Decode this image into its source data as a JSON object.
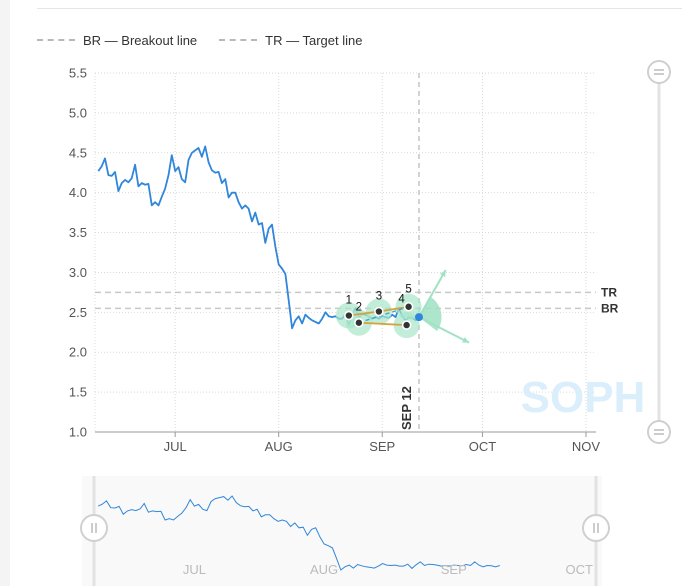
{
  "legend": {
    "br_label": "BR — Breakout line",
    "tr_label": "TR — Target line"
  },
  "watermark": "SOPH",
  "colors": {
    "price": "#2f86da",
    "reference_lines": "#c8c8c8",
    "pattern_fill": "#a8e6c9",
    "pattern_line_a": "#d6a23c",
    "pattern_line_b": "#3fa8c9",
    "projection": "#9fe2c4",
    "endpoint": "#2f86da",
    "watermark": "#dbeefc"
  },
  "chart_data": {
    "type": "line",
    "title": "",
    "xlabel": "",
    "ylabel": "",
    "ylim": [
      1.0,
      5.5
    ],
    "xlim": [
      "2025-06-07",
      "2025-11-04"
    ],
    "yticks": [
      "1.0",
      "1.5",
      "2.0",
      "2.5",
      "3.0",
      "3.5",
      "4.0",
      "4.5",
      "5.0",
      "5.5"
    ],
    "xticks": [
      {
        "label": "JUL",
        "date": "2025-07-01"
      },
      {
        "label": "AUG",
        "date": "2025-08-01"
      },
      {
        "label": "SEP",
        "date": "2025-09-01"
      },
      {
        "label": "OCT",
        "date": "2025-10-01"
      },
      {
        "label": "NOV",
        "date": "2025-11-01"
      }
    ],
    "grid": true,
    "legend_position": "top-left",
    "series": [
      {
        "values": [
          [
            "2025-06-08",
            4.27
          ],
          [
            "2025-06-09",
            4.33
          ],
          [
            "2025-06-10",
            4.43
          ],
          [
            "2025-06-11",
            4.22
          ],
          [
            "2025-06-12",
            4.21
          ],
          [
            "2025-06-13",
            4.26
          ],
          [
            "2025-06-14",
            4.02
          ],
          [
            "2025-06-15",
            4.12
          ],
          [
            "2025-06-16",
            4.16
          ],
          [
            "2025-06-17",
            4.13
          ],
          [
            "2025-06-18",
            4.18
          ],
          [
            "2025-06-19",
            4.35
          ],
          [
            "2025-06-20",
            4.08
          ],
          [
            "2025-06-21",
            4.12
          ],
          [
            "2025-06-22",
            4.1
          ],
          [
            "2025-06-23",
            4.11
          ],
          [
            "2025-06-24",
            3.84
          ],
          [
            "2025-06-25",
            3.88
          ],
          [
            "2025-06-26",
            3.84
          ],
          [
            "2025-06-27",
            3.95
          ],
          [
            "2025-06-28",
            4.05
          ],
          [
            "2025-06-29",
            4.22
          ],
          [
            "2025-06-30",
            4.47
          ],
          [
            "2025-07-01",
            4.27
          ],
          [
            "2025-07-02",
            4.32
          ],
          [
            "2025-07-03",
            4.17
          ],
          [
            "2025-07-04",
            4.13
          ],
          [
            "2025-07-05",
            4.41
          ],
          [
            "2025-07-06",
            4.5
          ],
          [
            "2025-07-07",
            4.53
          ],
          [
            "2025-07-08",
            4.56
          ],
          [
            "2025-07-09",
            4.45
          ],
          [
            "2025-07-10",
            4.58
          ],
          [
            "2025-07-11",
            4.38
          ],
          [
            "2025-07-12",
            4.28
          ],
          [
            "2025-07-13",
            4.25
          ],
          [
            "2025-07-14",
            4.26
          ],
          [
            "2025-07-15",
            4.12
          ],
          [
            "2025-07-16",
            4.17
          ],
          [
            "2025-07-17",
            3.94
          ],
          [
            "2025-07-18",
            4.0
          ],
          [
            "2025-07-19",
            4.0
          ],
          [
            "2025-07-20",
            3.88
          ],
          [
            "2025-07-21",
            3.8
          ],
          [
            "2025-07-22",
            3.84
          ],
          [
            "2025-07-23",
            3.8
          ],
          [
            "2025-07-24",
            3.64
          ],
          [
            "2025-07-25",
            3.75
          ],
          [
            "2025-07-26",
            3.6
          ],
          [
            "2025-07-27",
            3.62
          ],
          [
            "2025-07-28",
            3.37
          ],
          [
            "2025-07-29",
            3.55
          ],
          [
            "2025-07-30",
            3.6
          ],
          [
            "2025-07-31",
            3.32
          ],
          [
            "2025-08-01",
            3.1
          ],
          [
            "2025-08-02",
            3.05
          ],
          [
            "2025-08-03",
            2.98
          ],
          [
            "2025-08-04",
            2.65
          ],
          [
            "2025-08-05",
            2.3
          ],
          [
            "2025-08-06",
            2.4
          ],
          [
            "2025-08-07",
            2.45
          ],
          [
            "2025-08-08",
            2.36
          ],
          [
            "2025-08-09",
            2.47
          ],
          [
            "2025-08-10",
            2.43
          ],
          [
            "2025-08-11",
            2.4
          ],
          [
            "2025-08-12",
            2.38
          ],
          [
            "2025-08-13",
            2.36
          ],
          [
            "2025-08-14",
            2.42
          ],
          [
            "2025-08-15",
            2.5
          ],
          [
            "2025-08-16",
            2.45
          ],
          [
            "2025-08-17",
            2.44
          ],
          [
            "2025-08-18",
            2.45
          ],
          [
            "2025-08-19",
            2.42
          ],
          [
            "2025-08-20",
            2.42
          ],
          [
            "2025-08-21",
            2.48
          ],
          [
            "2025-08-22",
            2.35
          ],
          [
            "2025-08-23",
            2.46
          ],
          [
            "2025-08-24",
            2.55
          ],
          [
            "2025-08-25",
            2.44
          ],
          [
            "2025-08-26",
            2.48
          ],
          [
            "2025-08-27",
            2.47
          ],
          [
            "2025-08-28",
            2.45
          ],
          [
            "2025-08-29",
            2.42
          ],
          [
            "2025-08-30",
            2.44
          ],
          [
            "2025-08-31",
            2.42
          ],
          [
            "2025-09-01",
            2.45
          ],
          [
            "2025-09-02",
            2.44
          ],
          [
            "2025-09-03",
            2.43
          ],
          [
            "2025-09-04",
            2.47
          ],
          [
            "2025-09-05",
            2.44
          ],
          [
            "2025-09-06",
            2.55
          ],
          [
            "2025-09-07",
            2.45
          ],
          [
            "2025-09-08",
            2.4
          ],
          [
            "2025-09-09",
            2.44
          ],
          [
            "2025-09-10",
            2.43
          ],
          [
            "2025-09-11",
            2.4
          ],
          [
            "2025-09-12",
            2.44
          ]
        ]
      }
    ],
    "reference_lines": [
      {
        "label": "TR",
        "y": 2.75
      },
      {
        "label": "BR",
        "y": 2.55
      }
    ],
    "date_marker": {
      "label": "SEP 12",
      "date": "2025-09-12"
    },
    "pattern_points": [
      {
        "label": "1",
        "date": "2025-08-22",
        "y": 2.46
      },
      {
        "label": "2",
        "date": "2025-08-25",
        "y": 2.37
      },
      {
        "label": "3",
        "date": "2025-08-31",
        "y": 2.51
      },
      {
        "label": "4",
        "date": "2025-09-08",
        "y": 2.34
      },
      {
        "label": "5",
        "date": "2025-09-08",
        "y": 2.57
      }
    ],
    "pattern_label_4": "4",
    "endpoint": {
      "date": "2025-09-12",
      "y": 2.44
    },
    "projection": {
      "up": {
        "date": "2025-09-20",
        "y": 3.03
      },
      "down": {
        "date": "2025-09-27",
        "y": 2.12
      }
    },
    "navigator": {
      "ticks": [
        "JUL",
        "AUG",
        "SEP",
        "OCT"
      ]
    }
  }
}
